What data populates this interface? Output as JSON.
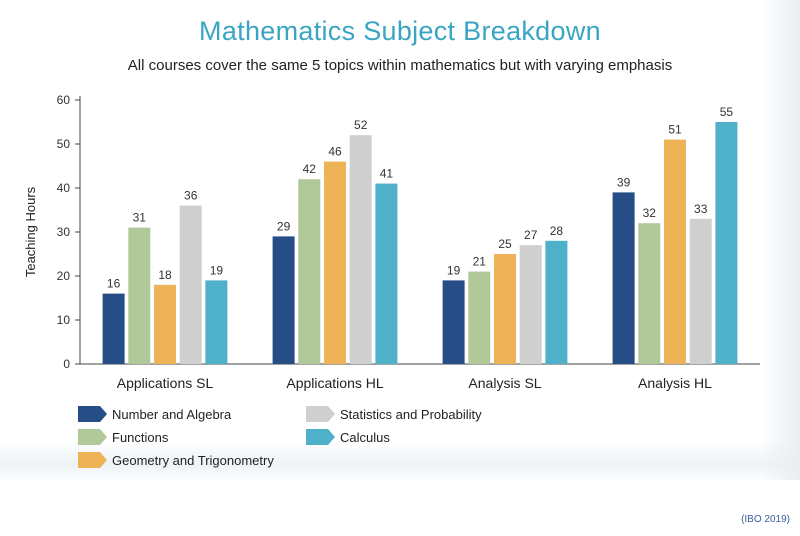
{
  "title": "Mathematics Subject Breakdown",
  "subtitle": "All courses cover the same 5 topics within mathematics but with varying emphasis",
  "source": "(IBO 2019)",
  "chart_data": {
    "type": "bar",
    "ylabel": "Teaching Hours",
    "xlabel": "",
    "ylim": [
      0,
      60
    ],
    "yticks": [
      0,
      10,
      20,
      30,
      40,
      50,
      60
    ],
    "grid": false,
    "legend_position": "bottom-left",
    "categories": [
      "Applications SL",
      "Applications HL",
      "Analysis SL",
      "Analysis HL"
    ],
    "series": [
      {
        "name": "Number and Algebra",
        "color": "#264d86",
        "values": [
          16,
          29,
          19,
          39
        ]
      },
      {
        "name": "Functions",
        "color": "#b1c998",
        "values": [
          31,
          42,
          21,
          32
        ]
      },
      {
        "name": "Geometry and Trigonometry",
        "color": "#efb357",
        "values": [
          18,
          46,
          25,
          51
        ]
      },
      {
        "name": "Statistics and Probability",
        "color": "#cfcfcf",
        "values": [
          36,
          52,
          27,
          33
        ]
      },
      {
        "name": "Calculus",
        "color": "#4fb0c9",
        "values": [
          19,
          41,
          28,
          55
        ]
      }
    ],
    "legend_order": [
      0,
      3,
      1,
      4,
      2
    ]
  }
}
